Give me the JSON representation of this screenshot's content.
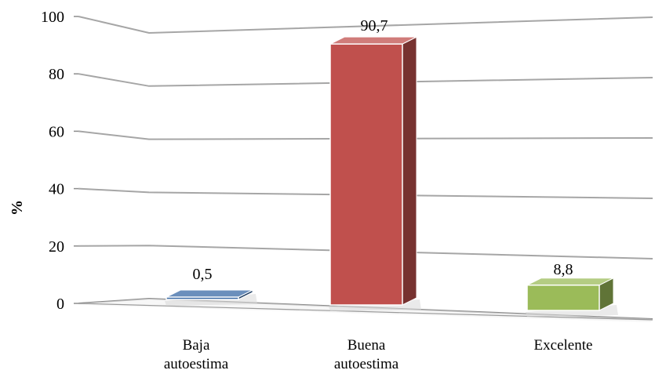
{
  "chart_data": {
    "type": "bar",
    "style": "3d-column",
    "title": "",
    "xlabel": "",
    "ylabel": "%",
    "ylim": [
      0,
      100
    ],
    "yticks": [
      0,
      20,
      40,
      60,
      80,
      100
    ],
    "grid": true,
    "legend": "none",
    "categories": [
      [
        "Baja",
        "autoestima"
      ],
      [
        "Buena",
        "autoestima"
      ],
      [
        "Excelente"
      ]
    ],
    "values": [
      0.5,
      90.7,
      8.8
    ],
    "value_labels": [
      "0,5",
      "90,7",
      "8,8"
    ],
    "colors": [
      "#3a6aa5",
      "#c0504d",
      "#9bbb59"
    ]
  }
}
